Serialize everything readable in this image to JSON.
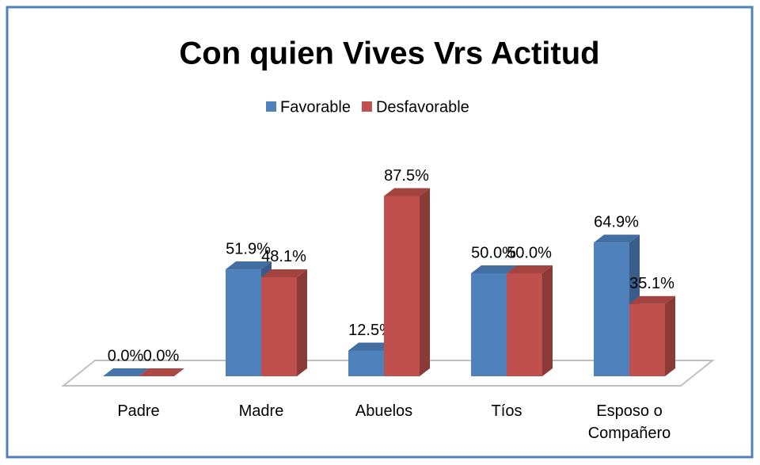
{
  "chart_data": {
    "type": "bar3d",
    "title": "Con quien Vives Vrs Actitud",
    "categories": [
      "Padre",
      "Madre",
      "Abuelos",
      "Tíos",
      "Esposo o Compañero"
    ],
    "series": [
      {
        "name": "Favorable",
        "color": "#4f81bd",
        "values": [
          0,
          51.9,
          12.5,
          50,
          64.9
        ],
        "value_labels": [
          "0.0%",
          "51.9%",
          "12.5%",
          "50.0%",
          "64.9%"
        ]
      },
      {
        "name": "Desfavorable",
        "color": "#c0504d",
        "values": [
          0,
          48.1,
          87.5,
          50,
          35.1
        ],
        "value_labels": [
          "0.0%",
          "48.1%",
          "87.5%",
          "50.0%",
          "35.1%"
        ]
      }
    ],
    "legend": "top"
  }
}
